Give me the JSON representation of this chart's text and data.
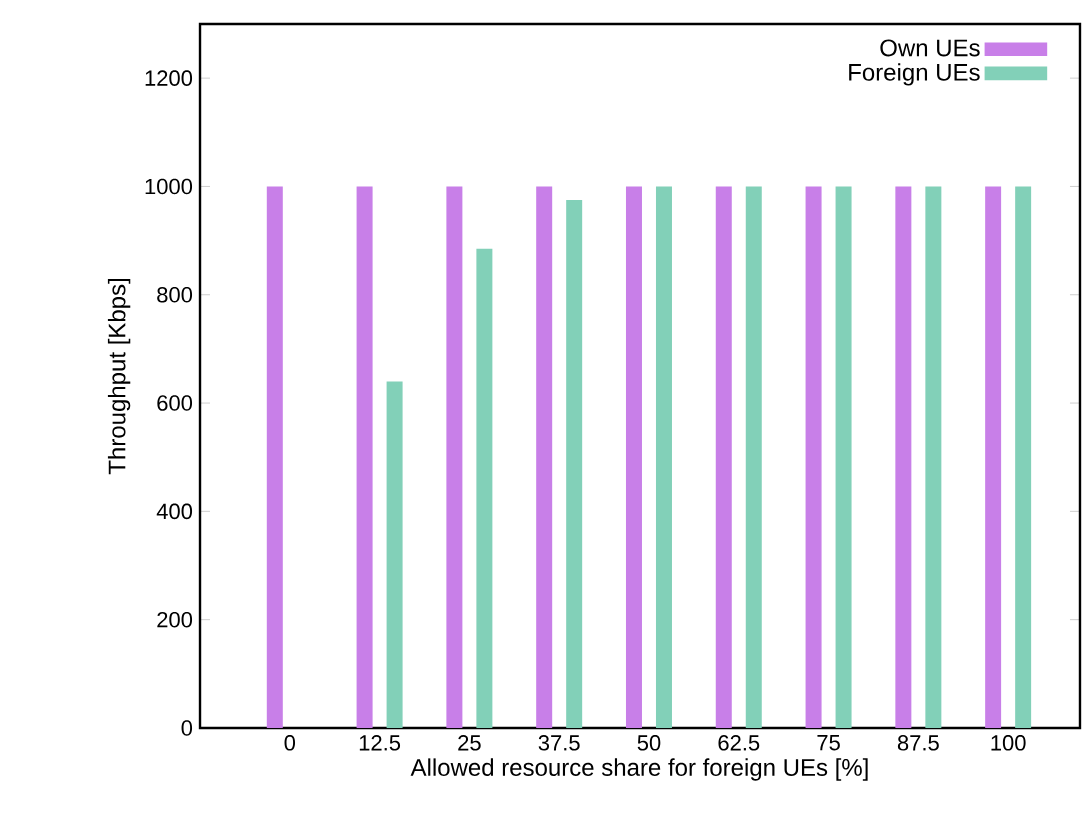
{
  "chart_data": {
    "type": "bar",
    "xlabel": "Allowed resource share for foreign UEs [%]",
    "ylabel": "Throughput [Kbps]",
    "categories": [
      "0",
      "12.5",
      "25",
      "37.5",
      "50",
      "62.5",
      "75",
      "87.5",
      "100"
    ],
    "series": [
      {
        "name": "Own UEs",
        "color": "#c87fe8",
        "values": [
          1000,
          1000,
          1000,
          1000,
          1000,
          1000,
          1000,
          1000,
          1000
        ]
      },
      {
        "name": "Foreign UEs",
        "color": "#82d0b8",
        "values": [
          null,
          640,
          885,
          975,
          1000,
          1000,
          1000,
          1000,
          1000
        ]
      }
    ],
    "ylim": [
      0,
      1300
    ],
    "yticks": [
      0,
      200,
      400,
      600,
      800,
      1000,
      1200
    ],
    "grid": false,
    "legend": "top right"
  }
}
